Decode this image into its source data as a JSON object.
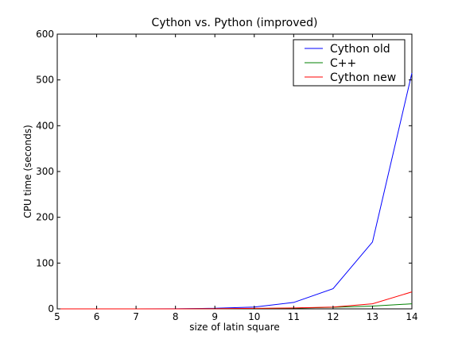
{
  "chart_data": {
    "type": "line",
    "title": "Cython vs. Python (improved)",
    "xlabel": "size of latin square",
    "ylabel": "CPU time (seconds)",
    "xlim": [
      5,
      14
    ],
    "ylim": [
      0,
      600
    ],
    "xticks": [
      "5",
      "6",
      "7",
      "8",
      "9",
      "10",
      "11",
      "12",
      "13",
      "14"
    ],
    "yticks": [
      "0",
      "100",
      "200",
      "300",
      "400",
      "500",
      "600"
    ],
    "grid": false,
    "legend_position": "top-right",
    "x": [
      5,
      6,
      7,
      8,
      9,
      10,
      11,
      12,
      13,
      14
    ],
    "series": [
      {
        "name": "Cython old",
        "color": "#0000ff",
        "values": [
          0,
          0,
          0.1,
          0.3,
          1.2,
          4,
          14,
          44,
          146,
          515
        ]
      },
      {
        "name": "C++",
        "color": "#008000",
        "values": [
          0,
          0,
          0,
          0.1,
          0.2,
          0.7,
          1.5,
          3.5,
          6,
          11
        ]
      },
      {
        "name": "Cython new",
        "color": "#ff0000",
        "values": [
          0,
          0,
          0,
          0.1,
          0.3,
          1,
          2,
          4,
          11,
          37
        ]
      }
    ]
  }
}
